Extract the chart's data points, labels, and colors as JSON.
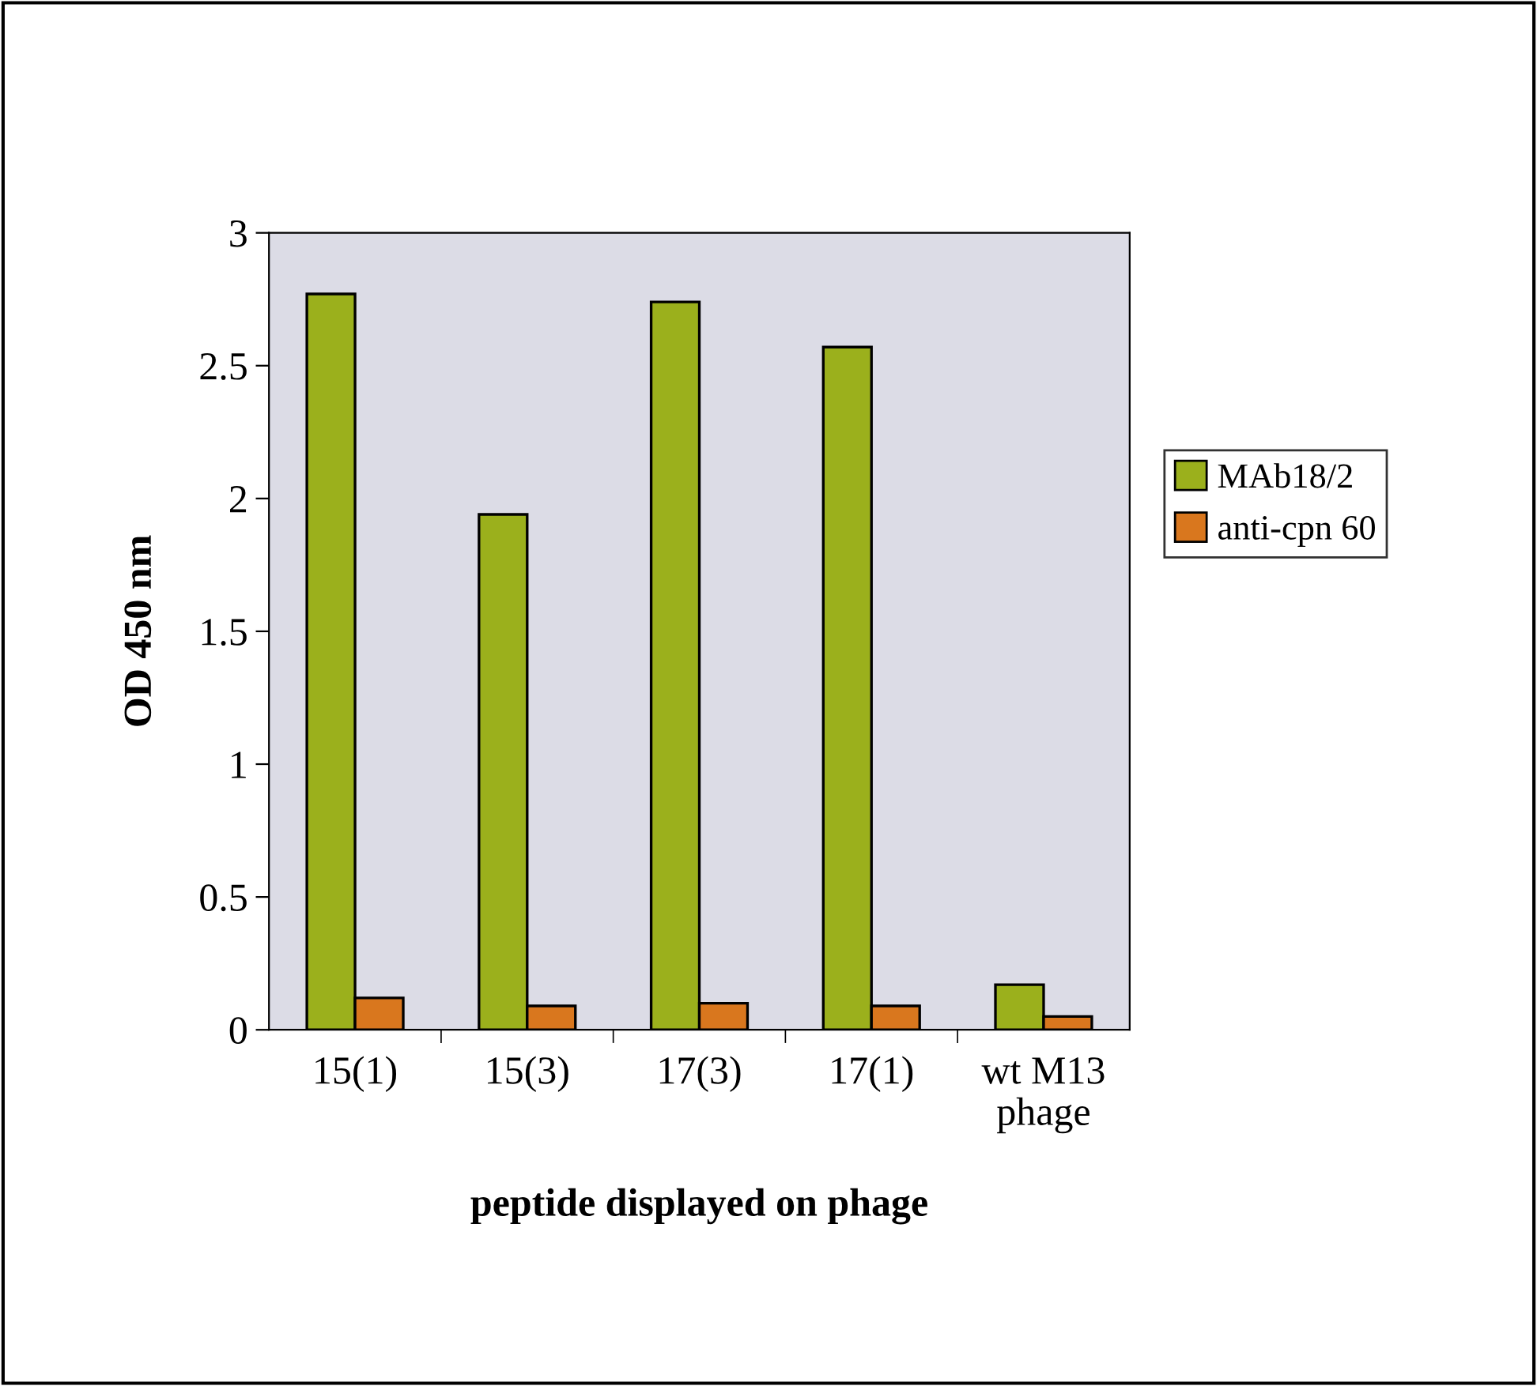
{
  "chart_data": {
    "type": "bar",
    "xlabel": "peptide displayed on phage",
    "ylabel": "OD 450 nm",
    "categories": [
      "15(1)",
      "15(3)",
      "17(3)",
      "17(1)",
      "wt M13\nphage"
    ],
    "series": [
      {
        "name": "MAb18/2",
        "color": "#9bb01c",
        "values": [
          2.77,
          1.94,
          2.74,
          2.57,
          0.17
        ]
      },
      {
        "name": "anti-cpn 60",
        "color": "#d9771e",
        "values": [
          0.12,
          0.09,
          0.1,
          0.09,
          0.05
        ]
      }
    ],
    "ylim": [
      0,
      3
    ],
    "yticks": [
      0,
      0.5,
      1,
      1.5,
      2,
      2.5,
      3
    ],
    "grid": false,
    "legend": "right"
  }
}
